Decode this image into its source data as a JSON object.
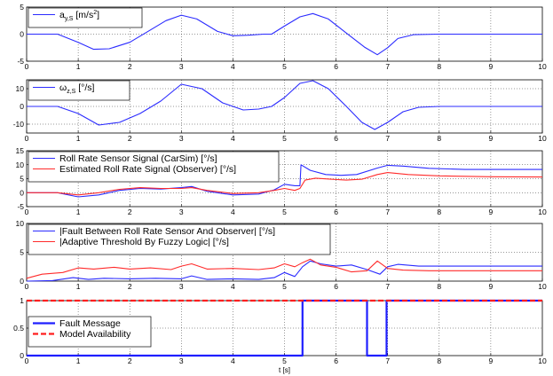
{
  "chart_data": [
    {
      "type": "line",
      "x_range": [
        0,
        10
      ],
      "ylim": [
        -5,
        5
      ],
      "yticks": [
        -5,
        0,
        5
      ],
      "grid": true,
      "legend_position": "top-left",
      "series": [
        {
          "name_main": "a",
          "name_sub": "y,S",
          "name_unit_pre": " [m/s",
          "name_unit_sup": "2",
          "name_unit_post": "]",
          "color": "#2b2bff",
          "x": [
            0,
            0.6,
            1.0,
            1.3,
            1.6,
            2.0,
            2.3,
            2.7,
            3.0,
            3.3,
            3.7,
            4.0,
            4.3,
            4.6,
            4.75,
            5.0,
            5.3,
            5.55,
            5.85,
            6.2,
            6.55,
            6.8,
            7.0,
            7.2,
            7.5,
            8.0,
            9.0,
            10.0
          ],
          "y": [
            0,
            0,
            -1.5,
            -2.8,
            -2.7,
            -1.5,
            0.2,
            2.5,
            3.5,
            2.8,
            0.5,
            -0.3,
            -0.2,
            0,
            0,
            1.5,
            3.2,
            3.8,
            2.8,
            0.2,
            -2.4,
            -3.8,
            -2.5,
            -0.8,
            -0.1,
            0,
            0,
            0
          ]
        }
      ]
    },
    {
      "type": "line",
      "x_range": [
        0,
        10
      ],
      "ylim": [
        -15,
        15
      ],
      "yticks": [
        -10,
        0,
        10
      ],
      "grid": true,
      "legend_position": "top-left",
      "series": [
        {
          "name_main": "ω",
          "name_sub": "z,S",
          "name_unit_pre": " [°/s]",
          "color": "#2b2bff",
          "x": [
            0,
            0.6,
            1.0,
            1.4,
            1.8,
            2.2,
            2.6,
            3.0,
            3.4,
            3.8,
            4.2,
            4.5,
            4.75,
            5.0,
            5.3,
            5.55,
            5.85,
            6.2,
            6.5,
            6.75,
            7.0,
            7.3,
            7.6,
            8.0,
            9.0,
            10.0
          ],
          "y": [
            0,
            0,
            -4,
            -10.5,
            -9,
            -4,
            3,
            12.5,
            10,
            2,
            -2,
            -1.5,
            0,
            5,
            13,
            14.5,
            10,
            0,
            -9,
            -13,
            -9,
            -3,
            -0.5,
            0,
            0,
            0
          ]
        }
      ]
    },
    {
      "type": "line",
      "x_range": [
        0,
        10
      ],
      "ylim": [
        -5,
        15
      ],
      "yticks": [
        -5,
        0,
        5,
        10,
        15
      ],
      "grid": true,
      "legend_position": "top-left",
      "series": [
        {
          "name": "Roll Rate Sensor Signal (CarSim) [°/s]",
          "color": "#2b2bff",
          "x": [
            0,
            0.6,
            1.0,
            1.4,
            1.8,
            2.2,
            2.6,
            3.0,
            3.2,
            3.5,
            4.0,
            4.5,
            4.8,
            5.0,
            5.2,
            5.3,
            5.32,
            5.5,
            5.8,
            6.1,
            6.4,
            6.8,
            7.0,
            7.3,
            7.8,
            8.5,
            10.0
          ],
          "y": [
            0,
            0,
            -1.5,
            -0.8,
            0.8,
            1.5,
            1.3,
            1.8,
            2.2,
            0.5,
            -0.8,
            -0.5,
            1,
            3,
            2.5,
            2.5,
            10,
            8,
            6.5,
            6.2,
            6.5,
            8.8,
            9.8,
            9.5,
            8.7,
            8.3,
            8.3
          ]
        },
        {
          "name": "Estimated Roll Rate Signal (Observer) [°/s]",
          "color": "#ff2b2b",
          "x": [
            0,
            0.6,
            1.0,
            1.4,
            1.8,
            2.2,
            2.6,
            3.0,
            3.2,
            3.5,
            4.0,
            4.5,
            4.8,
            5.0,
            5.2,
            5.3,
            5.4,
            5.6,
            5.9,
            6.2,
            6.5,
            6.8,
            7.0,
            7.4,
            8.0,
            9.0,
            10.0
          ],
          "y": [
            0,
            0,
            -0.8,
            0,
            1.2,
            1.8,
            1.5,
            1.5,
            1.8,
            0.8,
            -0.3,
            0,
            0.8,
            1.5,
            0.8,
            1.5,
            4.5,
            5.2,
            4.8,
            4.5,
            4.8,
            6.5,
            7.2,
            6.5,
            6,
            5.7,
            5.6
          ]
        }
      ]
    },
    {
      "type": "line",
      "x_range": [
        0,
        10
      ],
      "ylim": [
        0,
        10
      ],
      "yticks": [
        0,
        5,
        10
      ],
      "grid": true,
      "legend_position": "top-left",
      "series": [
        {
          "name": "|Fault Between Roll Rate Sensor And Observer| [°/s]",
          "color": "#2b2bff",
          "x": [
            0,
            0.5,
            0.9,
            1.2,
            1.5,
            2.0,
            2.5,
            3.0,
            3.2,
            3.5,
            4.0,
            4.5,
            4.8,
            5.0,
            5.2,
            5.35,
            5.5,
            5.7,
            6.0,
            6.3,
            6.6,
            6.85,
            7.0,
            7.2,
            7.6,
            8.0,
            10.0
          ],
          "y": [
            0,
            0.1,
            0.6,
            0.3,
            0.5,
            0.4,
            0.5,
            0.4,
            0.9,
            0.3,
            0.4,
            0.3,
            0.6,
            1.5,
            0.8,
            2.5,
            3.5,
            3.0,
            2.6,
            2.8,
            2.0,
            1.2,
            2.5,
            2.9,
            2.6,
            2.6,
            2.6
          ]
        },
        {
          "name": "|Adaptive Threshold By Fuzzy Logic| [°/s]",
          "color": "#ff2b2b",
          "x": [
            0,
            0.3,
            0.7,
            1.0,
            1.3,
            1.7,
            2.0,
            2.4,
            2.8,
            3.0,
            3.2,
            3.5,
            4.0,
            4.5,
            4.8,
            5.0,
            5.2,
            5.35,
            5.5,
            5.7,
            6.0,
            6.3,
            6.6,
            6.8,
            7.0,
            7.3,
            7.8,
            8.5,
            10.0
          ],
          "y": [
            0.5,
            1.2,
            1.5,
            2.3,
            2.1,
            2.4,
            2.1,
            2.3,
            2.0,
            2.6,
            3.0,
            2.1,
            2.2,
            2.0,
            2.3,
            3.0,
            2.5,
            3.2,
            3.8,
            2.8,
            2.4,
            1.6,
            1.8,
            3.5,
            2.2,
            1.9,
            1.8,
            1.8,
            1.8
          ]
        }
      ]
    },
    {
      "type": "line",
      "x_range": [
        0,
        10
      ],
      "ylim": [
        0,
        1
      ],
      "yticks": [
        0,
        0.5,
        1
      ],
      "grid": true,
      "legend_position": "left",
      "xlabel": "t [s]",
      "series": [
        {
          "name": "Fault Message",
          "color": "#1f1fff",
          "width": 2.2,
          "x": [
            0,
            5.35,
            5.35,
            6.6,
            6.6,
            6.98,
            6.98,
            10.0
          ],
          "y": [
            0,
            0,
            1,
            1,
            0,
            0,
            1,
            1
          ]
        },
        {
          "name": "Model Availability",
          "color": "#ff1f1f",
          "width": 2.2,
          "dash": "6 3",
          "x": [
            0,
            10
          ],
          "y": [
            1,
            1
          ]
        }
      ]
    }
  ]
}
